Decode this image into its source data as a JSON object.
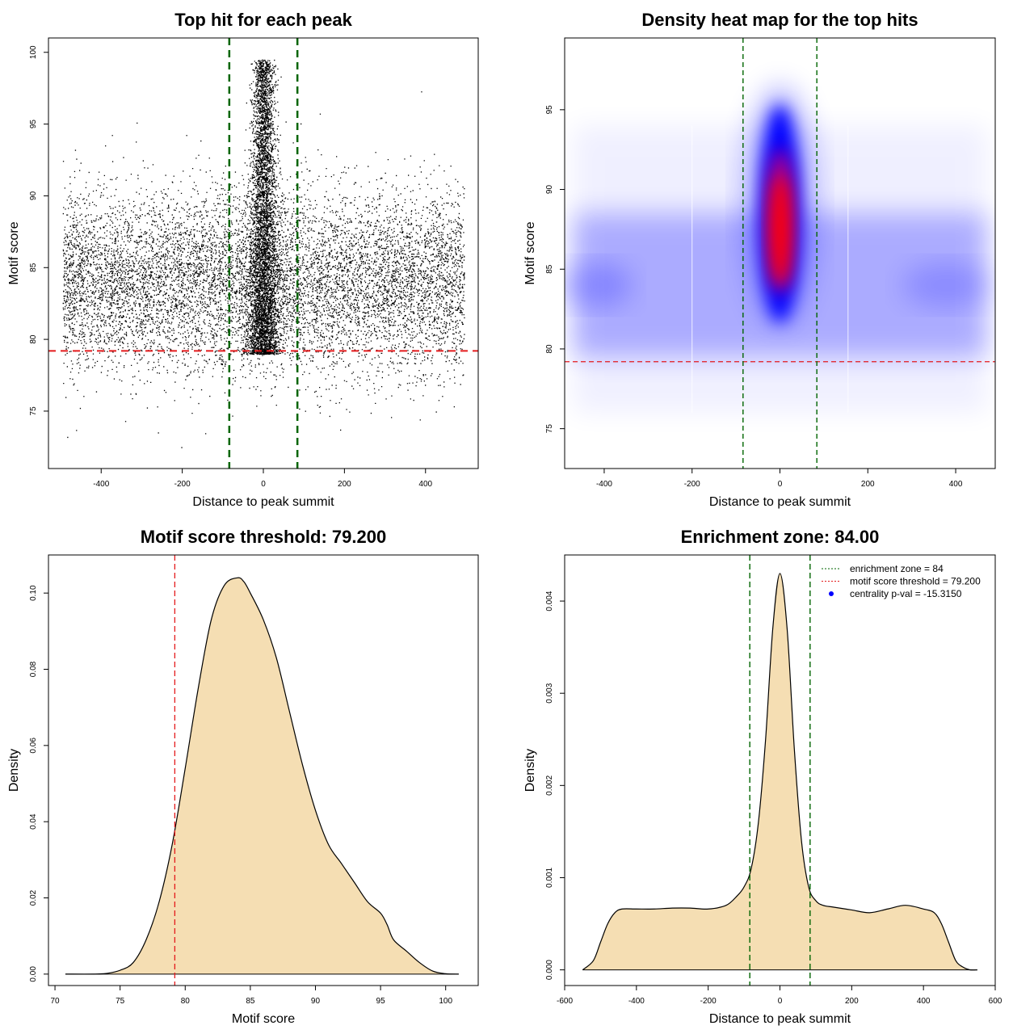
{
  "colors": {
    "threshold_line": "#e41a1c",
    "zone_line": "#006400",
    "density_fill": "#f5deb3",
    "heat_low": "#ffffff",
    "heat_mid": "#0000ff",
    "heat_high": "#ff0000",
    "points": "#000000",
    "centrality_marker": "#0000ff"
  },
  "chart_data": [
    {
      "type": "scatter",
      "title": "Top hit for each peak",
      "xlabel": "Distance to peak summit",
      "ylabel": "Motif score",
      "xlim": [
        -530,
        530
      ],
      "ylim": [
        71,
        101
      ],
      "xticks": [
        -400,
        -200,
        0,
        200,
        400
      ],
      "yticks": [
        75,
        80,
        85,
        90,
        95,
        100
      ],
      "grid": false,
      "threshold": 79.2,
      "zone": [
        -84,
        84
      ],
      "distribution": {
        "background": {
          "x_range": [
            -495,
            495
          ],
          "y_mean": 84.0,
          "y_sd": 3.1
        },
        "central": {
          "x_sd": 18,
          "y_range": [
            79,
            99.5
          ]
        }
      }
    },
    {
      "type": "heatmap",
      "title": "Density heat map for the top hits",
      "xlabel": "Distance to peak summit",
      "ylabel": "Motif score",
      "xlim": [
        -490,
        490
      ],
      "ylim": [
        72.5,
        99.5
      ],
      "xticks": [
        -400,
        -200,
        0,
        200,
        400
      ],
      "yticks": [
        75,
        80,
        85,
        90,
        95
      ],
      "threshold": 79.2,
      "zone": [
        -84,
        84
      ],
      "color_scale": [
        "white",
        "blue",
        "red"
      ]
    },
    {
      "type": "area",
      "title": "Motif score threshold: 79.200",
      "xlabel": "Motif score",
      "ylabel": "Density",
      "xlim": [
        69.5,
        102.5
      ],
      "ylim": [
        -0.003,
        0.11
      ],
      "xticks": [
        70,
        75,
        80,
        85,
        90,
        95,
        100
      ],
      "yticks": [
        0.0,
        0.02,
        0.04,
        0.06,
        0.08,
        0.1
      ],
      "ytick_labels": [
        "0.00",
        "0.02",
        "0.04",
        "0.06",
        "0.08",
        "0.10"
      ],
      "threshold": 79.2,
      "x": [
        70.8,
        73,
        74,
        75,
        76,
        77,
        78,
        79,
        80,
        81,
        82,
        83,
        84,
        84.5,
        85,
        86,
        87,
        88,
        89,
        90,
        91,
        92,
        93,
        94,
        95,
        95.5,
        96,
        97,
        98,
        99,
        100,
        101
      ],
      "y": [
        0.0,
        0.0,
        0.0002,
        0.001,
        0.003,
        0.009,
        0.019,
        0.034,
        0.054,
        0.075,
        0.093,
        0.102,
        0.104,
        0.103,
        0.1,
        0.093,
        0.083,
        0.069,
        0.055,
        0.043,
        0.034,
        0.029,
        0.024,
        0.019,
        0.016,
        0.013,
        0.009,
        0.006,
        0.003,
        0.0008,
        0.0001,
        0.0
      ]
    },
    {
      "type": "area",
      "title": "Enrichment zone: 84.00",
      "xlabel": "Distance to peak summit",
      "ylabel": "Density",
      "xlim": [
        -600,
        600
      ],
      "ylim": [
        -0.00017,
        0.0045
      ],
      "xticks": [
        -600,
        -400,
        -200,
        0,
        200,
        400,
        600
      ],
      "yticks": [
        0.0,
        0.001,
        0.002,
        0.003,
        0.004
      ],
      "ytick_labels": [
        "0.000",
        "0.001",
        "0.002",
        "0.003",
        "0.004"
      ],
      "zone": [
        -84,
        84
      ],
      "x": [
        -550,
        -520,
        -500,
        -480,
        -460,
        -440,
        -400,
        -350,
        -300,
        -250,
        -200,
        -150,
        -120,
        -100,
        -80,
        -60,
        -40,
        -20,
        0,
        20,
        40,
        60,
        80,
        100,
        120,
        150,
        200,
        250,
        300,
        350,
        400,
        430,
        450,
        470,
        490,
        510,
        530,
        550
      ],
      "y": [
        0.0,
        0.0001,
        0.0003,
        0.0005,
        0.00062,
        0.00066,
        0.00066,
        0.00066,
        0.00067,
        0.00067,
        0.00066,
        0.0007,
        0.0008,
        0.0009,
        0.0011,
        0.0016,
        0.0025,
        0.0037,
        0.0043,
        0.0037,
        0.0024,
        0.0014,
        0.0009,
        0.00075,
        0.0007,
        0.00068,
        0.00065,
        0.00062,
        0.00066,
        0.0007,
        0.00066,
        0.00062,
        0.0005,
        0.0003,
        0.0001,
        3e-05,
        0.0,
        0.0
      ],
      "legend": {
        "placement": "top-right",
        "entries": [
          {
            "label": "enrichment zone = 84",
            "style": "dotted",
            "color": "#006400"
          },
          {
            "label": "motif score threshold = 79.200",
            "style": "dotted",
            "color": "#e41a1c"
          },
          {
            "label": "centrality p-val = -15.3150",
            "style": "point",
            "color": "#0000ff"
          }
        ]
      }
    }
  ]
}
